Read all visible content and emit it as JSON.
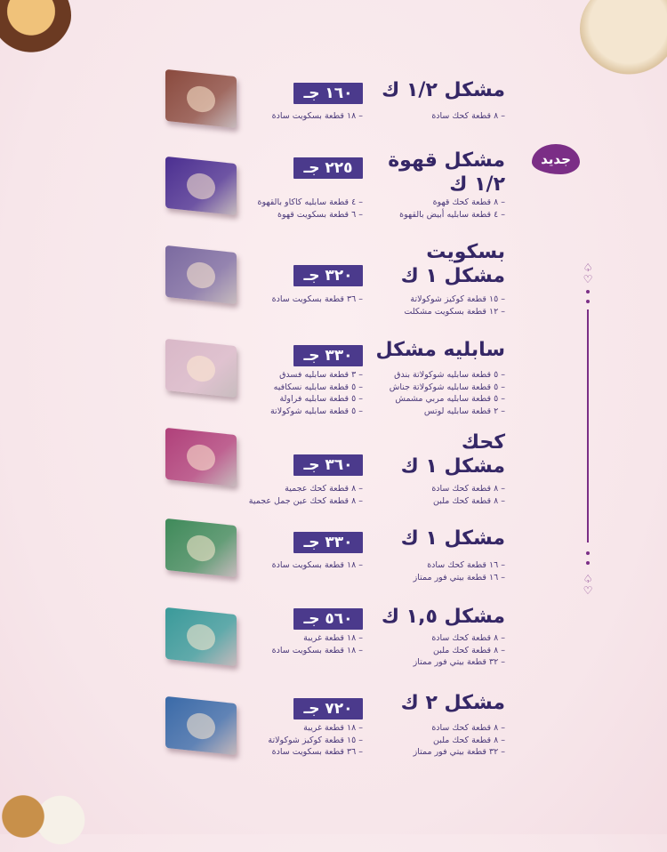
{
  "badge_new": "جديد",
  "currency": "ج",
  "colors": {
    "title": "#352766",
    "price_bg": "#4b3a8c",
    "new_badge": "#7b2e86",
    "background": "#f7e6ea"
  },
  "items": [
    {
      "title": [
        "مشكل ١/٢ ك"
      ],
      "price": "١٦٠ جـ",
      "details_right": [
        "– ٨ قطعة كحك سادة"
      ],
      "details_left": [
        "– ١٨ قطعة بسكويت سادة"
      ],
      "box_color": "#8a4a3e"
    },
    {
      "title": [
        "مشكل قهوة",
        "١/٢ ك"
      ],
      "price": "٢٢٥ جـ",
      "is_new": true,
      "details_right": [
        "– ٨ قطعة كحك قهوة",
        "– ٤ قطعة سابليه أبيض بالقهوة"
      ],
      "details_left": [
        "– ٤ قطعة سابليه كاكاو بالقهوة",
        "– ٦ قطعة بسكويت قهوة"
      ],
      "box_color": "#4b2f91"
    },
    {
      "title": [
        "بسكويت",
        "مشكل ١ ك"
      ],
      "price": "٣٢٠ جـ",
      "details_right": [
        "– ١٥ قطعة كوكيز شوكولاتة",
        "– ١٢ قطعة بسكويت مشكلت"
      ],
      "details_left": [
        "– ٣٦ قطعة بسكويت سادة"
      ],
      "box_color": "#7b6aa0"
    },
    {
      "title": [
        "سابليه مشكل"
      ],
      "price": "٣٣٠ جـ",
      "details_right": [
        "– ٥ قطعة سابليه شوكولاتة بندق",
        "– ٥ قطعة سابليه شوكولاتة جناش",
        "– ٥ قطعة سابليه مربي مشمش",
        "– ٢ قطعة سابليه لوتس"
      ],
      "details_left": [
        "– ٣ قطعة سابليه فسدق",
        "– ٥ قطعة سابليه نسكافيه",
        "– ٥ قطعة سابليه فراولة",
        "– ٥ قطعة سابليه شوكولاتة"
      ],
      "box_color": "#d9b8c8"
    },
    {
      "title": [
        "كحك",
        "مشكل ١ ك"
      ],
      "price": "٣٦٠ جـ",
      "details_right": [
        "– ٨ قطعة كحك سادة",
        "– ٨ قطعة كحك ملبن"
      ],
      "details_left": [
        "– ٨ قطعة كحك عجمية",
        "– ٨ قطعة كحك عين جمل عجمية"
      ],
      "box_color": "#b0407a"
    },
    {
      "title": [
        "مشكل ١ ك"
      ],
      "price": "٣٣٠ جـ",
      "details_right": [
        "– ١٦ قطعة كحك سادة",
        "– ١٦ قطعة بيتي فور ممتاز"
      ],
      "details_left": [
        "– ١٨ قطعة بسكويت سادة"
      ],
      "box_color": "#3f8a5a"
    },
    {
      "title": [
        "مشكل ١,٥ ك"
      ],
      "price": "٥٦٠ جـ",
      "details_right": [
        "– ٨ قطعة كحك سادة",
        "– ٨ قطعة كحك ملبن",
        "– ٣٢ قطعة بيتي فور ممتاز"
      ],
      "details_left": [
        "– ١٨ قطعة غريبة",
        "– ١٨ قطعة بسكويت سادة"
      ],
      "box_color": "#3a9a9a"
    },
    {
      "title": [
        "مشكل ٢ ك"
      ],
      "price": "٧٢٠ جـ",
      "details_right": [
        "– ٨ قطعة كحك سادة",
        "– ٨ قطعة كحك ملبن",
        "– ٣٢ قطعة بيتي فور ممتاز"
      ],
      "details_left": [
        "– ١٨ قطعة غريبة",
        "– ١٥ قطعة كوكيز شوكولاتة",
        "– ٣٦ قطعة بسكويت سادة"
      ],
      "box_color": "#3a6aa8"
    }
  ]
}
